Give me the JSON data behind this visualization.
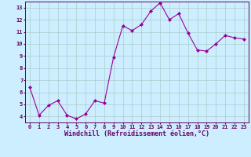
{
  "x": [
    0,
    1,
    2,
    3,
    4,
    5,
    6,
    7,
    8,
    9,
    10,
    11,
    12,
    13,
    14,
    15,
    16,
    17,
    18,
    19,
    20,
    21,
    22,
    23
  ],
  "y": [
    6.4,
    4.1,
    4.9,
    5.3,
    4.1,
    3.8,
    4.2,
    5.3,
    5.1,
    8.9,
    11.5,
    11.1,
    11.6,
    12.7,
    13.4,
    12.0,
    12.5,
    10.9,
    9.5,
    9.4,
    10.0,
    10.7,
    10.5,
    10.4
  ],
  "line_color": "#990099",
  "marker": "D",
  "marker_size": 2,
  "bg_color": "#cceeff",
  "grid_color": "#aacccc",
  "xlabel": "Windchill (Refroidissement éolien,°C)",
  "xlabel_color": "#660066",
  "tick_color": "#660066",
  "ylabel_ticks": [
    4,
    5,
    6,
    7,
    8,
    9,
    10,
    11,
    12,
    13
  ],
  "xlabel_ticks": [
    0,
    1,
    2,
    3,
    4,
    5,
    6,
    7,
    8,
    9,
    10,
    11,
    12,
    13,
    14,
    15,
    16,
    17,
    18,
    19,
    20,
    21,
    22,
    23
  ],
  "ylim": [
    3.5,
    13.5
  ],
  "xlim": [
    -0.5,
    23.5
  ],
  "spine_color": "#660066",
  "font_family": "monospace",
  "tick_fontsize": 5.0,
  "xlabel_fontsize": 6.0
}
